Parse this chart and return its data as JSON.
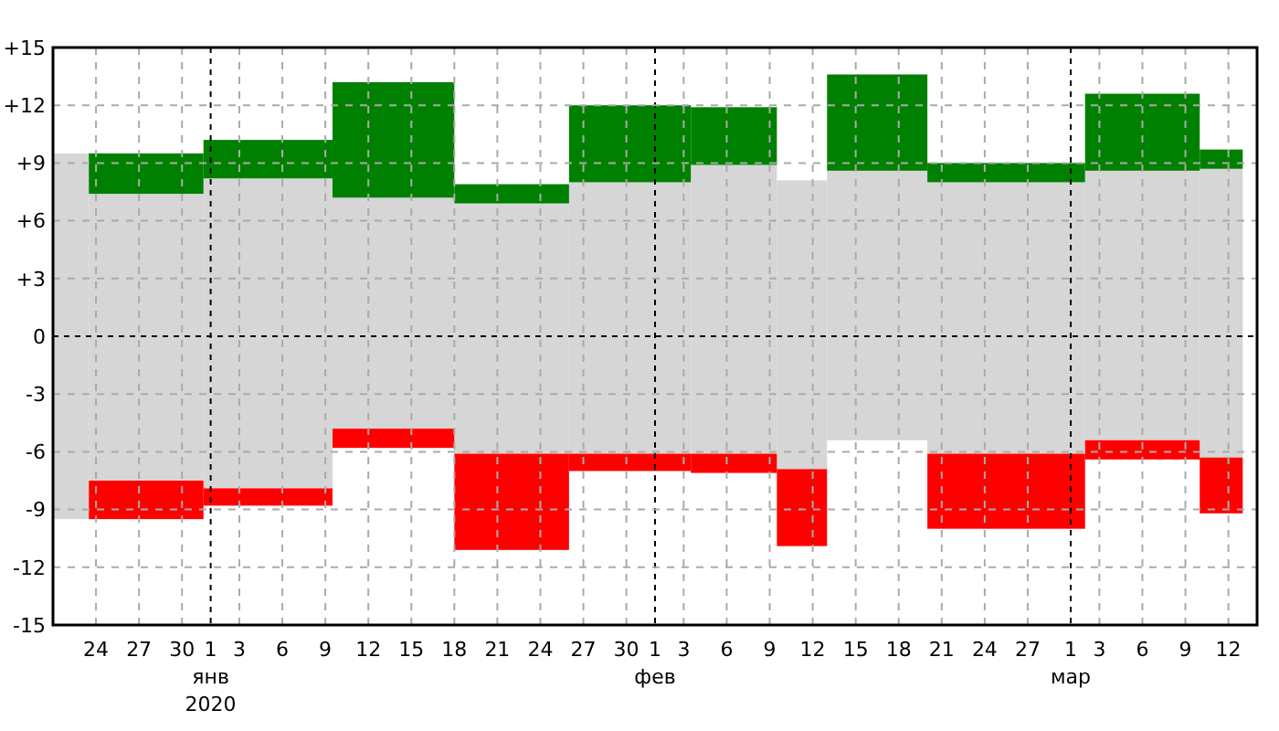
{
  "chart_data": {
    "type": "bar",
    "x": [
      "2019-12-22T06:00",
      "2019-12-27T12:00",
      "2020-01-05",
      "2020-01-13T18:00",
      "2020-01-22",
      "2020-01-30T06:00",
      "2020-02-06T12:00",
      "2020-02-11T06:00",
      "2020-02-16T12:00",
      "2020-02-25T12:00",
      "2020-03-06",
      "2020-03-11T12:00"
    ],
    "xlim": [
      "2019-12-21",
      "2020-03-14"
    ],
    "xticks": [
      {
        "value": "2019-12-24",
        "label": "24"
      },
      {
        "value": "2019-12-27",
        "label": "27"
      },
      {
        "value": "2019-12-30",
        "label": "30"
      },
      {
        "value": "2020-01-01",
        "label": "1\nянв\n2020"
      },
      {
        "value": "2020-01-03",
        "label": "3"
      },
      {
        "value": "2020-01-06",
        "label": "6"
      },
      {
        "value": "2020-01-09",
        "label": "9"
      },
      {
        "value": "2020-01-12",
        "label": "12"
      },
      {
        "value": "2020-01-15",
        "label": "15"
      },
      {
        "value": "2020-01-18",
        "label": "18"
      },
      {
        "value": "2020-01-21",
        "label": "21"
      },
      {
        "value": "2020-01-24",
        "label": "24"
      },
      {
        "value": "2020-01-27",
        "label": "27"
      },
      {
        "value": "2020-01-30",
        "label": "30"
      },
      {
        "value": "2020-02-01",
        "label": "1\nфев"
      },
      {
        "value": "2020-02-03",
        "label": "3"
      },
      {
        "value": "2020-02-06",
        "label": "6"
      },
      {
        "value": "2020-02-09",
        "label": "9"
      },
      {
        "value": "2020-02-12",
        "label": "12"
      },
      {
        "value": "2020-02-15",
        "label": "15"
      },
      {
        "value": "2020-02-18",
        "label": "18"
      },
      {
        "value": "2020-02-21",
        "label": "21"
      },
      {
        "value": "2020-02-24",
        "label": "24"
      },
      {
        "value": "2020-02-27",
        "label": "27"
      },
      {
        "value": "2020-03-01",
        "label": "1\nмар"
      },
      {
        "value": "2020-03-03",
        "label": "3"
      },
      {
        "value": "2020-03-06",
        "label": "6"
      },
      {
        "value": "2020-03-09",
        "label": "9"
      },
      {
        "value": "2020-03-12",
        "label": "12"
      }
    ],
    "ylim": [
      -15,
      15
    ],
    "yticks": [
      {
        "value": 15,
        "label": "+15"
      },
      {
        "value": 12,
        "label": "+12"
      },
      {
        "value": 9,
        "label": "+9"
      },
      {
        "value": 6,
        "label": "+6"
      },
      {
        "value": 3,
        "label": "+3"
      },
      0,
      -3,
      -6,
      -9,
      -12,
      -15
    ],
    "grid": true,
    "series": [
      {
        "color": "#d6d6d6",
        "values": [
          19.0,
          14.9,
          16.1,
          12.0,
          13.0,
          14.1,
          15.0,
          15.0,
          14.0,
          14.1,
          14.0,
          15.0
        ],
        "base": [
          -9.5,
          -7.5,
          -7.9,
          -4.8,
          -6.1,
          -6.1,
          -6.1,
          -6.9,
          -5.4,
          -6.1,
          -5.4,
          -6.3
        ]
      },
      {
        "color": "#008000",
        "values": [
          null,
          2.1,
          2.0,
          6.0,
          1.0,
          4.0,
          3.0,
          null,
          5.0,
          1.0,
          4.0,
          1.0
        ],
        "base": [
          null,
          7.4,
          8.2,
          7.2,
          6.9,
          8.0,
          8.9,
          null,
          8.6,
          8.0,
          8.6,
          8.7
        ]
      },
      {
        "color": "#ff0000",
        "values": [
          null,
          2.0,
          0.9,
          1.0,
          5.0,
          0.9,
          1.0,
          4.0,
          null,
          3.9,
          1.0,
          2.9
        ],
        "base": [
          null,
          -9.5,
          -8.8,
          -5.8,
          -11.1,
          -7.0,
          -7.1,
          -10.9,
          null,
          -10.0,
          -6.4,
          -9.2
        ]
      }
    ]
  }
}
